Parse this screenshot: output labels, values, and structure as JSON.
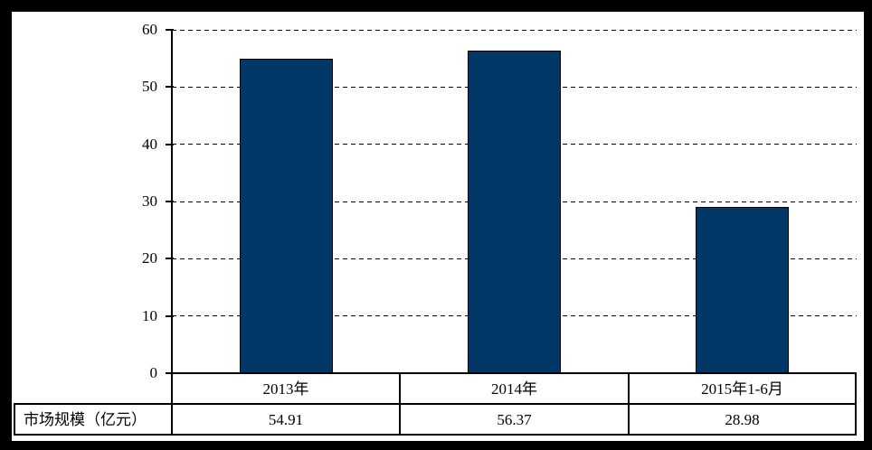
{
  "chart_data": {
    "type": "bar",
    "title": "",
    "xlabel": "",
    "ylabel": "",
    "categories": [
      "2013年",
      "2014年",
      "2015年1-6月"
    ],
    "values": [
      54.91,
      56.37,
      28.98
    ],
    "row_label": "市场规模（亿元）",
    "ylim": [
      0,
      60
    ],
    "yticks": [
      0,
      10,
      20,
      30,
      40,
      50,
      60
    ],
    "grid": "horizontal-dashed",
    "legend": "none",
    "data_table_below_axis": true,
    "colors": {
      "bar": "#003767",
      "axis": "#000000",
      "background": "#ffffff",
      "outer_border": "#000000"
    }
  }
}
